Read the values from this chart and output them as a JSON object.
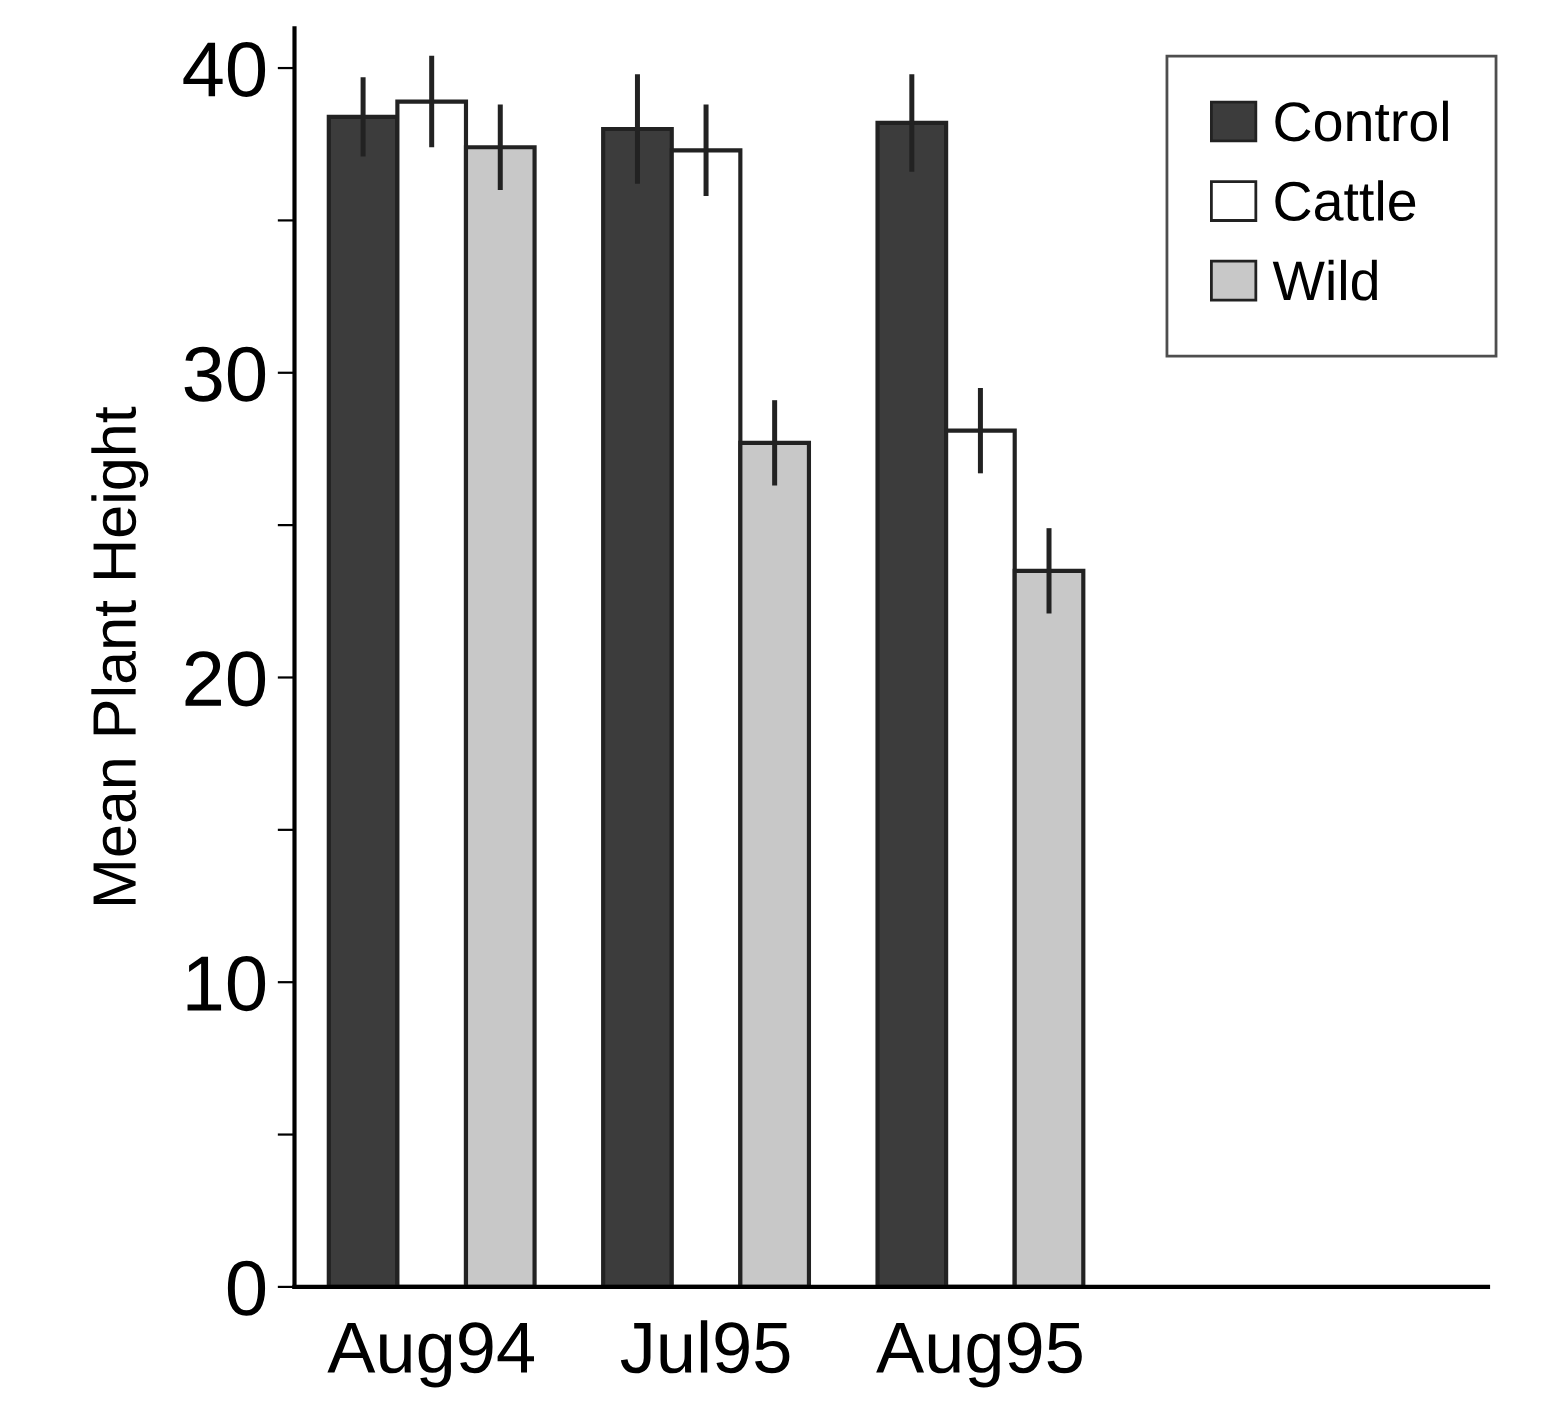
{
  "chart_data": {
    "type": "bar",
    "ylabel": "Mean Plant Height",
    "categories": [
      "Aug94",
      "Jul95",
      "Aug95"
    ],
    "series": [
      {
        "name": "Control",
        "color": "#3c3c3c",
        "values": [
          38.4,
          38.0,
          38.2
        ],
        "errors": [
          1.3,
          1.8,
          1.6
        ]
      },
      {
        "name": "Cattle",
        "color": "#ffffff",
        "values": [
          38.9,
          37.3,
          28.1
        ],
        "errors": [
          1.5,
          1.5,
          1.4
        ]
      },
      {
        "name": "Wild",
        "color": "#c8c8c8",
        "values": [
          37.4,
          27.7,
          23.5
        ],
        "errors": [
          1.4,
          1.4,
          1.4
        ]
      }
    ],
    "ylim": [
      0,
      41.3
    ],
    "yticks": [
      0,
      {
        "value": 5,
        "label": null
      },
      10,
      {
        "value": 15,
        "label": null
      },
      20,
      {
        "value": 25,
        "label": null
      },
      30,
      {
        "value": 35,
        "label": null
      },
      40
    ],
    "grid": false,
    "legend": "top right"
  }
}
